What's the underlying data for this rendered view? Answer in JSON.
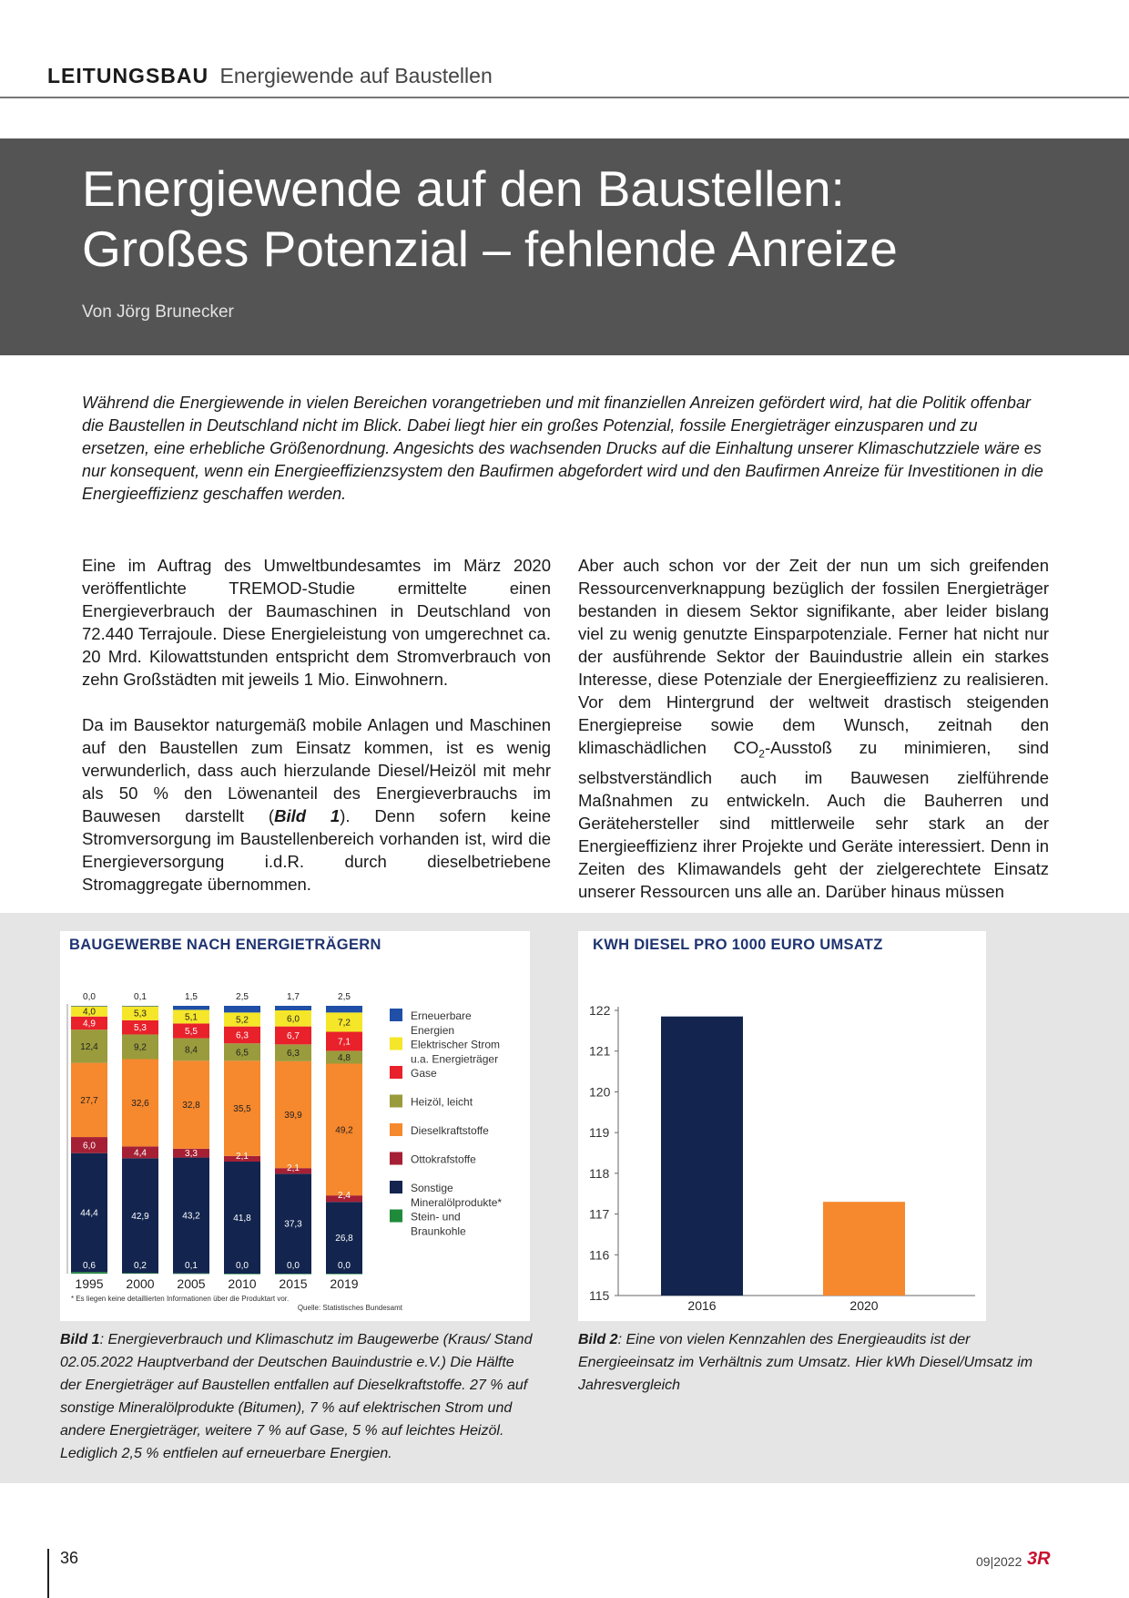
{
  "header": {
    "section": "LEITUNGSBAU",
    "subtitle": "Energiewende auf Baustellen"
  },
  "hero": {
    "title_line1": "Energiewende auf den Baustellen:",
    "title_line2": "Großes Potenzial – fehlende Anreize",
    "byline": "Von Jörg Brunecker"
  },
  "lead": "Während die Energiewende in vielen Bereichen vorangetrieben und mit finanziellen Anreizen gefördert wird, hat die Politik offenbar die Baustellen in Deutschland nicht im Blick. Dabei liegt hier ein großes Potenzial, fossile Energieträger einzusparen und zu ersetzen, eine erhebliche Größenordnung. Angesichts des wachsenden Drucks auf die Einhaltung unserer Klimaschutzziele wäre es nur konsequent, wenn ein Energieeffizienzsystem den Baufirmen abgefordert wird und den Baufirmen Anreize für Investitionen in die Energieeffizienz geschaffen werden.",
  "body": {
    "col1_p1": "Eine im Auftrag des Umweltbundesamtes im März 2020 veröffentlichte TREMOD-Studie ermittelte einen Energieverbrauch der Baumaschinen in Deutschland von 72.440 Terrajoule. Diese Energieleistung von umgerechnet ca. 20 Mrd. Kilowattstunden entspricht dem Stromverbrauch von zehn Großstädten mit jeweils 1 Mio. Einwohnern.",
    "col1_p2a": "Da im Bausektor naturgemäß mobile Anlagen und Maschinen auf den Baustellen zum Einsatz kommen, ist es wenig verwunderlich, dass auch hierzulande Diesel/Heizöl mit mehr als 50 % den Löwenanteil des Energieverbrauchs im Bauwesen darstellt (",
    "col1_p2_ref": "Bild 1",
    "col1_p2b": "). Denn sofern keine Stromversorgung im Baustellenbereich vorhanden ist, wird die Energieversorgung i.d.R. durch dieselbetriebene Stromaggregate übernommen.",
    "col2_a": "Aber auch schon vor der Zeit der nun um sich greifenden Ressourcenverknappung bezüglich der fossilen Energieträger bestanden in diesem Sektor signifikante, aber leider bislang viel zu wenig genutzte Einsparpotenziale. Ferner hat nicht nur der ausführende Sektor der Bauindustrie allein ein starkes Interesse, diese Potenziale der Energieeffizienz zu realisieren. Vor dem Hintergrund der weltweit drastisch steigenden Energiepreise sowie dem Wunsch, zeitnah den klimaschädlichen CO",
    "col2_sub": "2",
    "col2_b": "-Ausstoß zu minimieren, sind selbstverständlich auch im Bauwesen zielführende Maßnahmen zu entwickeln. Auch die Bauherren und Gerätehersteller sind mittlerweile sehr stark an der Energieeffizienz ihrer Projekte und Geräte interessiert. Denn in Zeiten des Klimawandels geht der zielgerechtete Einsatz unserer Ressourcen uns alle an. Darüber hinaus müssen"
  },
  "captions": {
    "c1_label": "Bild 1",
    "c1_text": ": Energieverbrauch und Klimaschutz im Baugewerbe (Kraus/ Stand 02.05.2022 Hauptverband der Deutschen Bauindustrie e.V.) Die Hälfte der Energieträger auf Baustellen entfallen auf Dieselkraftstoffe. 27 % auf sonstige Mineralölprodukte (Bitumen), 7 % auf elektrischen Strom und andere Energieträger, weitere 7 % auf Gase, 5 % auf leichtes Heizöl. Lediglich 2,5 % entfielen auf erneuerbare Energien.",
    "c2_label": "Bild 2",
    "c2_text": ": Eine von vielen Kennzahlen des Energieaudits ist der Energieeinsatz im Verhältnis zum Umsatz. Hier kWh Diesel/Umsatz im Jahresvergleich"
  },
  "footer": {
    "page": "36",
    "issue": "09|2022",
    "logo": "3R"
  },
  "colors": {
    "erneuerbar": "#1f4fa6",
    "strom": "#f5e629",
    "gase": "#e8212b",
    "heizoel": "#9a9b3c",
    "diesel": "#f6882d",
    "otto": "#a52035",
    "sonstige": "#13254f",
    "kohle": "#1f8a3a",
    "navy": "#13254f",
    "orange": "#f6882d"
  },
  "chart_data": [
    {
      "type": "bar",
      "stacked": true,
      "title": "BAUGEWERBE NACH ENERGIETRÄGERN",
      "categories": [
        "1995",
        "2000",
        "2005",
        "2010",
        "2015",
        "2019"
      ],
      "series": [
        {
          "name": "Stein- und Braunkohle",
          "values": [
            0.6,
            0.2,
            0.1,
            0.0,
            0.0,
            0.0
          ],
          "labels": [
            "0,6",
            "0,2",
            "0,1",
            "0,0",
            "0,0",
            "0,0"
          ]
        },
        {
          "name": "Sonstige Mineralölprodukte*",
          "values": [
            44.4,
            42.9,
            43.2,
            41.8,
            37.3,
            26.8
          ],
          "labels": [
            "44,4",
            "42,9",
            "43,2",
            "41,8",
            "37,3",
            "26,8"
          ]
        },
        {
          "name": "Ottokrafstoffe",
          "values": [
            6.0,
            4.4,
            3.3,
            2.1,
            2.1,
            2.4
          ],
          "labels": [
            "6,0",
            "4,4",
            "3,3",
            "2,1",
            "2,1",
            "2,4"
          ]
        },
        {
          "name": "Dieselkraftstoffe",
          "values": [
            27.7,
            32.6,
            32.8,
            35.5,
            39.9,
            49.2
          ],
          "labels": [
            "27,7",
            "32,6",
            "32,8",
            "35,5",
            "39,9",
            "49,2"
          ]
        },
        {
          "name": "Heizöl, leicht",
          "values": [
            12.4,
            9.2,
            8.4,
            6.5,
            6.3,
            4.8
          ],
          "labels": [
            "12,4",
            "9,2",
            "8,4",
            "6,5",
            "6,3",
            "4,8"
          ]
        },
        {
          "name": "Gase",
          "values": [
            4.9,
            5.3,
            5.5,
            6.3,
            6.7,
            7.1
          ],
          "labels": [
            "4,9",
            "5,3",
            "5,5",
            "6,3",
            "6,7",
            "7,1"
          ]
        },
        {
          "name": "Elektrischer Strom u.a. Energieträger",
          "values": [
            4.0,
            5.3,
            5.1,
            5.2,
            6.0,
            7.2
          ],
          "labels": [
            "4,0",
            "5,3",
            "5,1",
            "5,2",
            "6,0",
            "7,2"
          ]
        },
        {
          "name": "Erneuerbare Energien",
          "values": [
            0.0,
            0.1,
            1.5,
            2.5,
            1.7,
            2.5
          ],
          "labels": [
            "0,0",
            "0,1",
            "1,5",
            "2,5",
            "1,7",
            "2,5"
          ]
        }
      ],
      "legend": [
        {
          "l1": "Erneuerbare",
          "l2": "Energien",
          "key": "erneuerbar"
        },
        {
          "l1": "Elektrischer Strom",
          "l2": "u.a. Energieträger",
          "key": "strom"
        },
        {
          "l1": "Gase",
          "l2": "",
          "key": "gase"
        },
        {
          "l1": "Heizöl, leicht",
          "l2": "",
          "key": "heizoel"
        },
        {
          "l1": "Dieselkraftstoffe",
          "l2": "",
          "key": "diesel"
        },
        {
          "l1": "Ottokrafstoffe",
          "l2": "",
          "key": "otto"
        },
        {
          "l1": "Sonstige",
          "l2": "Mineralölprodukte*",
          "key": "sonstige"
        },
        {
          "l1": "Stein- und",
          "l2": "Braunkohle",
          "key": "kohle"
        }
      ],
      "legend_position": "right",
      "footnote": "* Es liegen keine detaillierten Informationen über die Produktart vor.",
      "source": "Quelle: Statistisches Bundesamt"
    },
    {
      "type": "bar",
      "title": "KWH DIESEL PRO 1000 EURO UMSATZ",
      "categories": [
        "2016",
        "2020"
      ],
      "values": [
        121.85,
        117.3
      ],
      "ylim": [
        115,
        122
      ],
      "yticks": [
        "115",
        "116",
        "117",
        "118",
        "119",
        "120",
        "121",
        "122"
      ],
      "bar_colors": [
        "navy",
        "orange"
      ]
    }
  ]
}
